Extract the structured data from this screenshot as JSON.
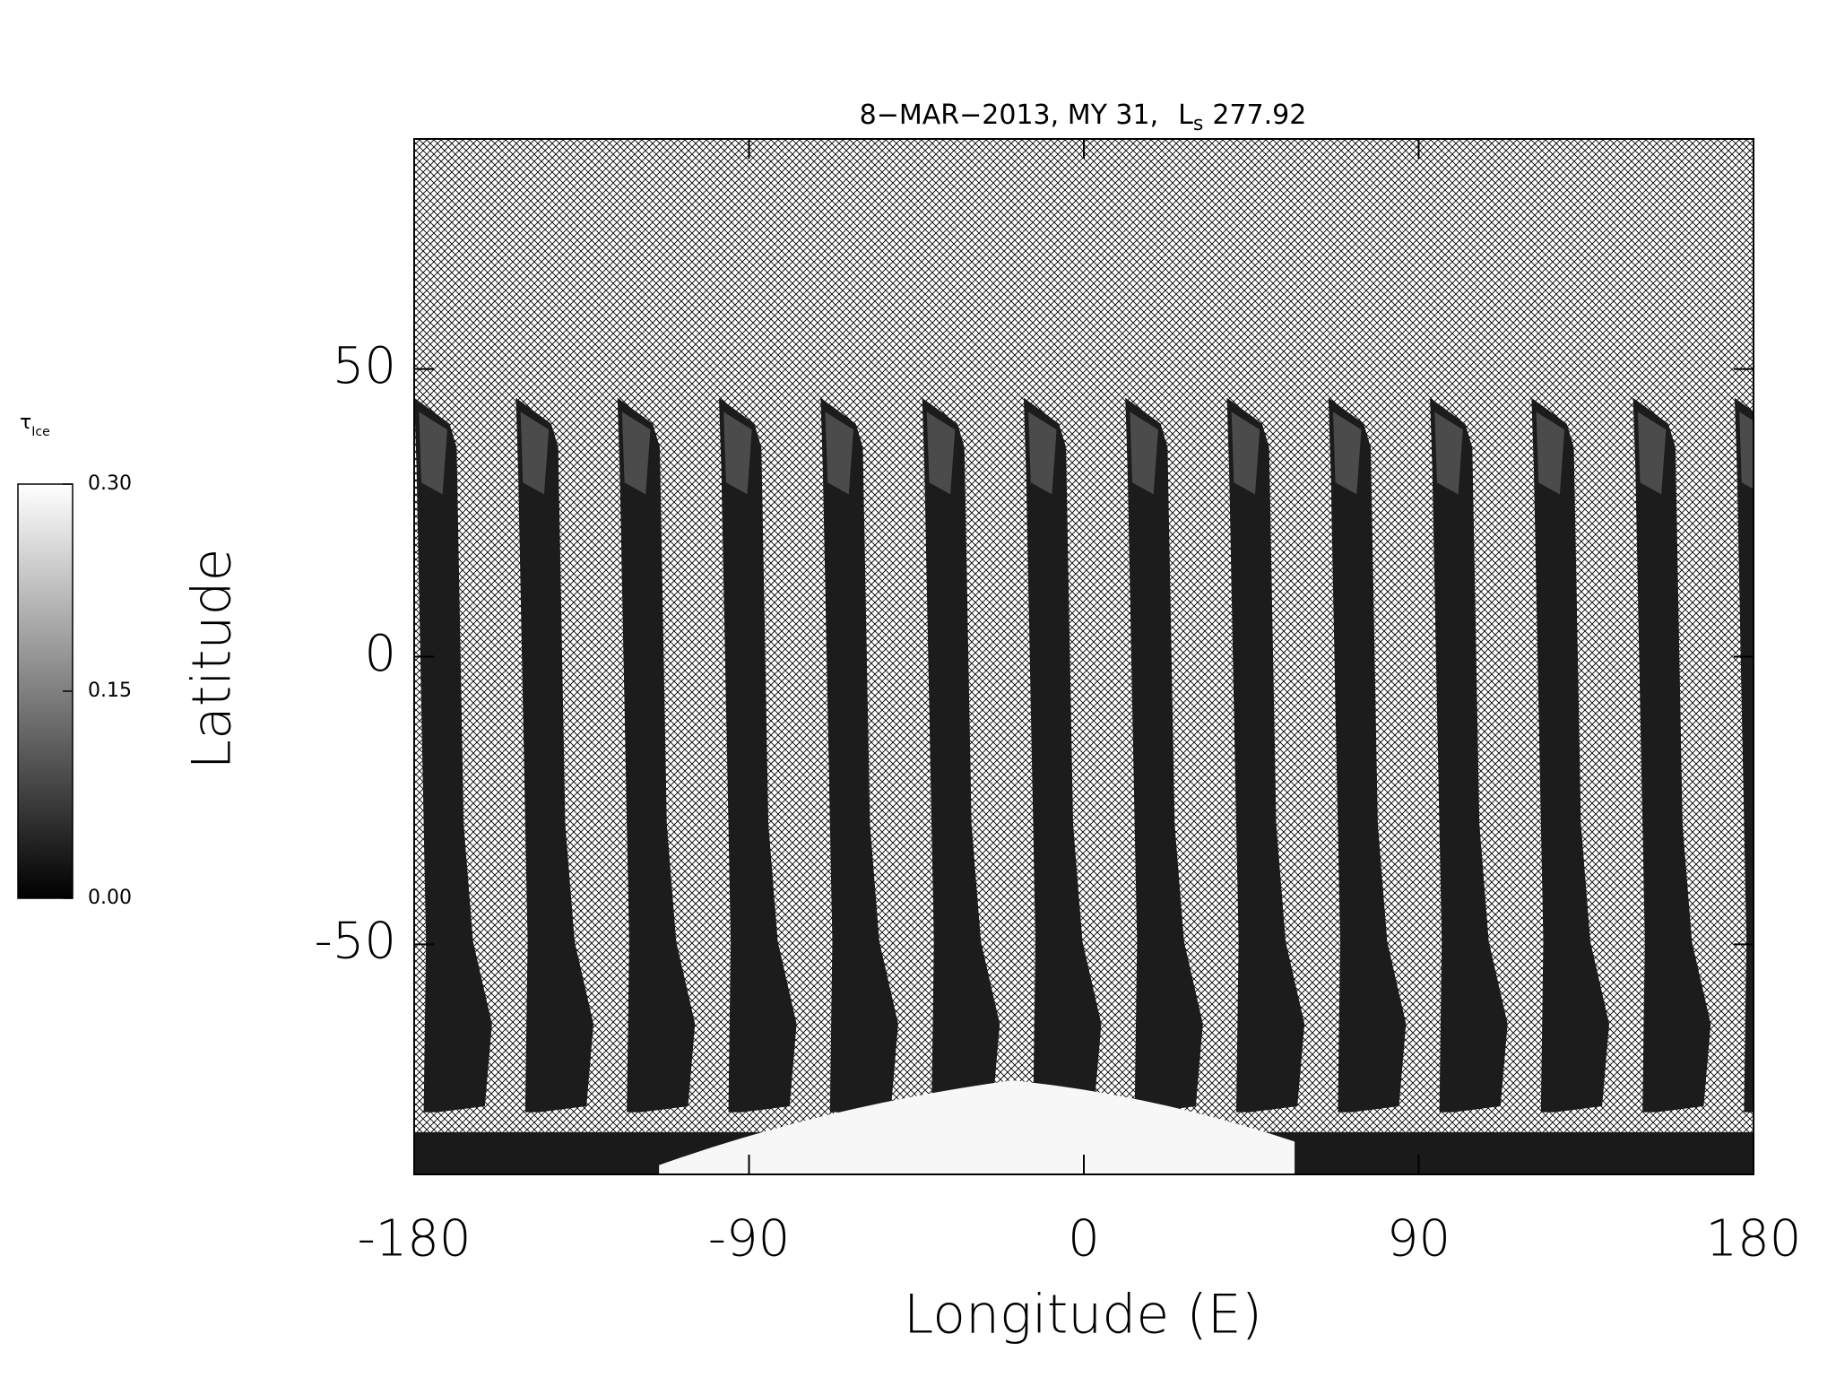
{
  "chart_data": {
    "type": "map",
    "title": {
      "text": "8−MAR−2013, MY 31,",
      "symbol": "L",
      "subscript": "s",
      "value": "277.92"
    },
    "x_label": "Longitude (E)",
    "y_label": "Latitude",
    "xlim": [
      -180,
      180
    ],
    "xticks": [
      -180,
      -90,
      0,
      90,
      180
    ],
    "ylim": [
      -90,
      90
    ],
    "yticks": [
      -50,
      0,
      50
    ],
    "colorbar": {
      "label": "τ",
      "label_subscript": "Ice",
      "lim": [
        0,
        0.3
      ],
      "ticks": [
        {
          "value": 0,
          "label": "0.00"
        },
        {
          "value": 0.15,
          "label": "0.15"
        },
        {
          "value": 0.3,
          "label": "0.30"
        }
      ]
    }
  }
}
